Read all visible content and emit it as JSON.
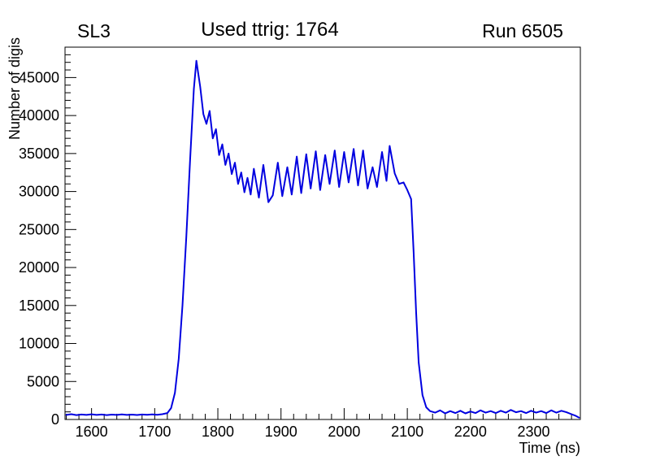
{
  "chart_data": {
    "type": "line",
    "title": "Used ttrig: 1764",
    "left_label": "SL3",
    "right_label": "Run 6505",
    "xlabel": "Time (ns)",
    "ylabel": "Number of digis",
    "xlim": [
      1558,
      2374
    ],
    "ylim": [
      0,
      49000
    ],
    "x_ticks": [
      1600,
      1700,
      1800,
      1900,
      2000,
      2100,
      2200,
      2300
    ],
    "x_minor_step": 20,
    "y_ticks": [
      0,
      5000,
      10000,
      15000,
      20000,
      25000,
      30000,
      35000,
      40000,
      45000
    ],
    "y_minor_step": 1000,
    "grid": false,
    "legend": "none",
    "line_color": "#0000e0",
    "frame_color": "#000000",
    "series": [
      {
        "name": "digis",
        "x": [
          1560,
          1568,
          1576,
          1584,
          1592,
          1600,
          1608,
          1616,
          1624,
          1632,
          1640,
          1648,
          1656,
          1664,
          1672,
          1680,
          1688,
          1696,
          1704,
          1712,
          1720,
          1726,
          1732,
          1738,
          1744,
          1750,
          1756,
          1762,
          1766,
          1772,
          1777,
          1782,
          1787,
          1792,
          1797,
          1802,
          1807,
          1812,
          1817,
          1822,
          1827,
          1832,
          1837,
          1842,
          1847,
          1852,
          1857,
          1865,
          1872,
          1880,
          1887,
          1895,
          1902,
          1910,
          1917,
          1925,
          1932,
          1940,
          1947,
          1955,
          1962,
          1970,
          1977,
          1985,
          1992,
          2000,
          2007,
          2015,
          2022,
          2030,
          2037,
          2045,
          2052,
          2060,
          2067,
          2072,
          2080,
          2087,
          2094,
          2100,
          2106,
          2110,
          2114,
          2118,
          2124,
          2130,
          2136,
          2144,
          2152,
          2160,
          2168,
          2176,
          2184,
          2192,
          2200,
          2208,
          2216,
          2224,
          2232,
          2240,
          2248,
          2256,
          2264,
          2272,
          2280,
          2288,
          2296,
          2304,
          2312,
          2320,
          2328,
          2336,
          2344,
          2352,
          2360,
          2366,
          2372
        ],
        "y": [
          600,
          700,
          580,
          650,
          600,
          680,
          600,
          650,
          580,
          640,
          600,
          660,
          600,
          640,
          590,
          650,
          610,
          660,
          620,
          700,
          850,
          1500,
          3500,
          8000,
          15000,
          24000,
          34000,
          43500,
          47200,
          43800,
          40200,
          38900,
          40600,
          37000,
          38200,
          34800,
          36200,
          33500,
          35000,
          32300,
          33800,
          31000,
          32500,
          29900,
          31800,
          29600,
          33000,
          29200,
          33500,
          28600,
          29500,
          33800,
          29400,
          33200,
          29600,
          34600,
          29800,
          34900,
          30400,
          35300,
          30200,
          34800,
          31000,
          35400,
          30600,
          35200,
          31200,
          35600,
          30800,
          35400,
          30400,
          33200,
          30600,
          35200,
          31400,
          36000,
          32400,
          31000,
          31200,
          30200,
          29000,
          22000,
          14000,
          7500,
          3200,
          1600,
          1100,
          900,
          1200,
          800,
          1100,
          850,
          1150,
          800,
          1050,
          850,
          1200,
          900,
          1100,
          850,
          1150,
          900,
          1250,
          950,
          1100,
          850,
          1150,
          900,
          1100,
          850,
          1200,
          900,
          1150,
          950,
          700,
          500,
          250
        ]
      }
    ]
  }
}
